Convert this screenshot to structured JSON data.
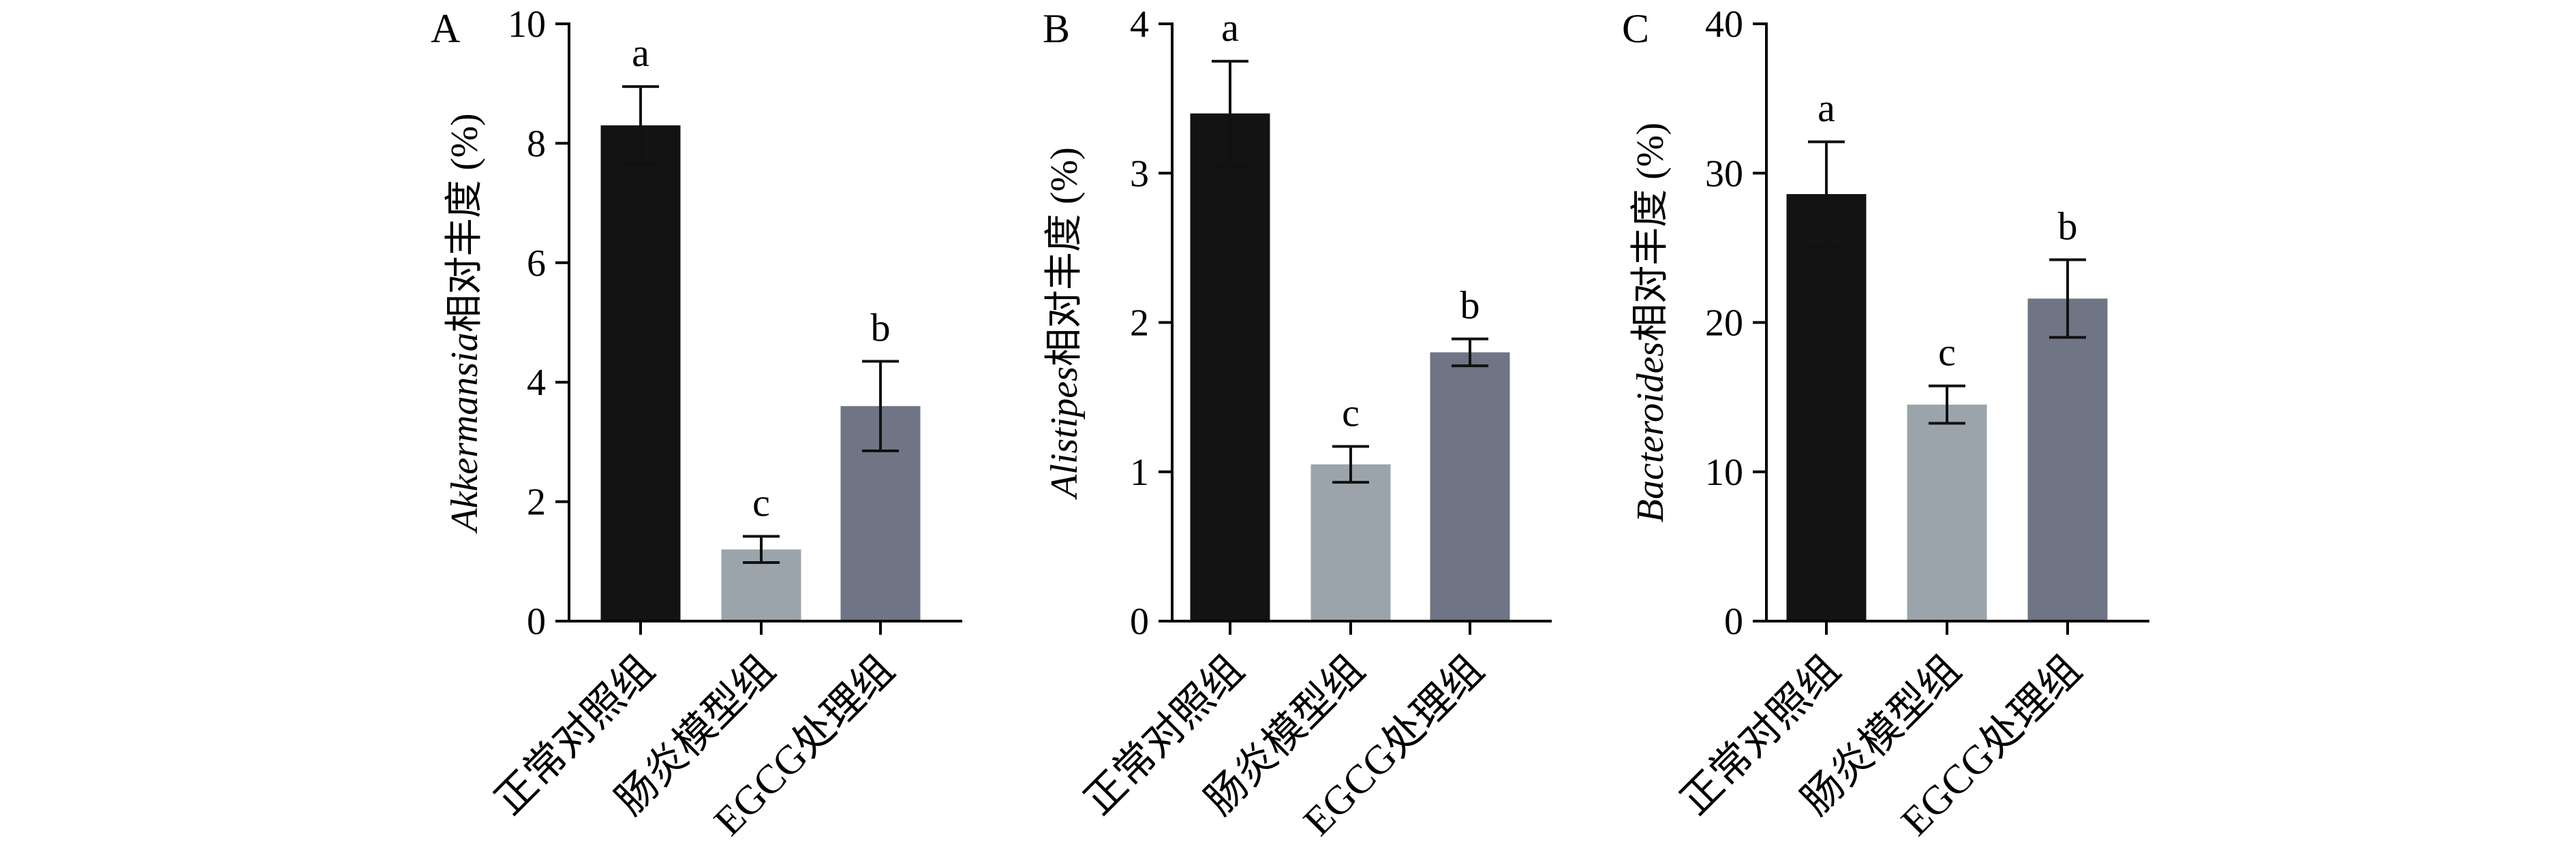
{
  "chart_data": [
    {
      "type": "bar",
      "panel": "A",
      "genus": "Akkermansia",
      "ylabel_suffix": "相对丰度 (%)",
      "categories": [
        "正常对照组",
        "肠炎模型组",
        "EGCG处理组"
      ],
      "values": [
        8.3,
        1.2,
        3.6
      ],
      "errors": [
        0.65,
        0.22,
        0.75
      ],
      "significance": [
        "a",
        "c",
        "b"
      ],
      "bar_colors": [
        "#131313",
        "#9ba4ab",
        "#6f7584"
      ],
      "ylim": [
        0,
        10
      ],
      "yticks": [
        0,
        2,
        4,
        6,
        8,
        10
      ]
    },
    {
      "type": "bar",
      "panel": "B",
      "genus": "Alistipes",
      "ylabel_suffix": "相对丰度 (%)",
      "categories": [
        "正常对照组",
        "肠炎模型组",
        "EGCG处理组"
      ],
      "values": [
        3.4,
        1.05,
        1.8
      ],
      "errors": [
        0.35,
        0.12,
        0.09
      ],
      "significance": [
        "a",
        "c",
        "b"
      ],
      "bar_colors": [
        "#131313",
        "#9ba4ab",
        "#6f7584"
      ],
      "ylim": [
        0,
        4
      ],
      "yticks": [
        0,
        1,
        2,
        3,
        4
      ]
    },
    {
      "type": "bar",
      "panel": "C",
      "genus": "Bacteroides",
      "ylabel_suffix": "相对丰度 (%)",
      "categories": [
        "正常对照组",
        "肠炎模型组",
        "EGCG处理组"
      ],
      "values": [
        28.6,
        14.5,
        21.6
      ],
      "errors": [
        3.5,
        1.25,
        2.6
      ],
      "significance": [
        "a",
        "c",
        "b"
      ],
      "bar_colors": [
        "#131313",
        "#9ba4ab",
        "#6f7584"
      ],
      "ylim": [
        0,
        40
      ],
      "yticks": [
        0,
        10,
        20,
        30,
        40
      ]
    }
  ]
}
